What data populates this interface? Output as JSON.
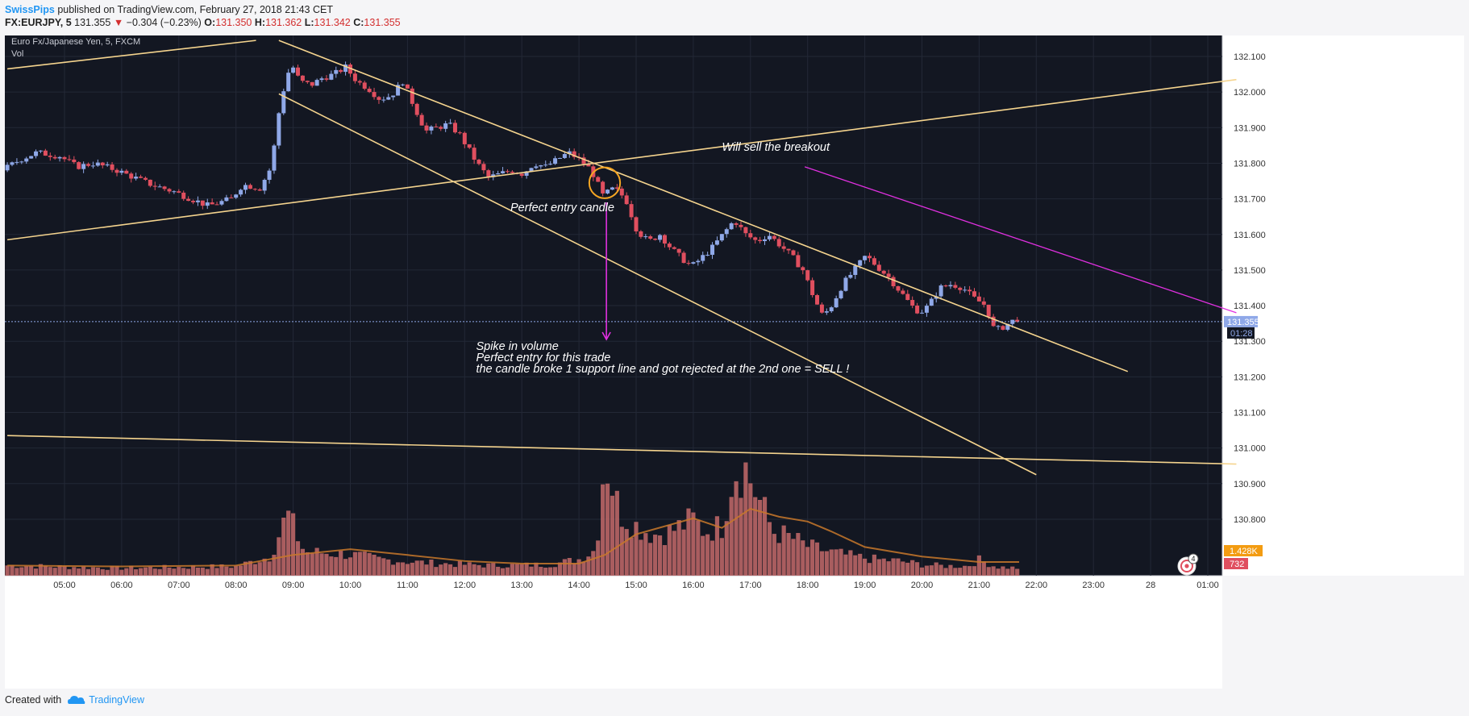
{
  "header": {
    "author": "SwissPips",
    "published": "published on TradingView.com, February 27, 2018 21:43 CET",
    "symbol": "FX:EURJPY, 5",
    "last": "131.355",
    "change": "−0.304 (−0.23%)",
    "o_label": "O:",
    "o_value": "131.350",
    "h_label": "H:",
    "h_value": "131.362",
    "l_label": "L:",
    "l_value": "131.342",
    "c_label": "C:",
    "c_value": "131.355"
  },
  "footer": {
    "created_with": "Created with",
    "brand": "TradingView"
  },
  "colors": {
    "background": "#131722",
    "up": "#8fa8e8",
    "down": "#e04f5f",
    "trendline": "#f5d48e",
    "magenta": "#e030e0",
    "circle": "#f5a623",
    "volume": "#c46a6a",
    "volume_ma": "#c8782a"
  },
  "chart_data": {
    "type": "candlestick",
    "title": "Euro Fx/Japanese Yen, 5, FXCM",
    "volume_label": "Vol",
    "ylim": [
      131.355,
      132.155
    ],
    "price_ticks": [
      "132.100",
      "132.000",
      "131.900",
      "131.800",
      "131.700",
      "131.600",
      "131.500",
      "131.400",
      "131.300",
      "131.200",
      "131.100",
      "131.000",
      "130.900",
      "130.800"
    ],
    "price_tick_values": [
      132.1,
      132.0,
      131.9,
      131.8,
      131.7,
      131.6,
      131.5,
      131.4,
      131.3,
      131.2,
      131.1,
      131.0,
      130.9,
      130.8
    ],
    "time_ticks": [
      "05:00",
      "06:00",
      "07:00",
      "08:00",
      "09:00",
      "10:00",
      "11:00",
      "12:00",
      "13:00",
      "14:00",
      "15:00",
      "16:00",
      "17:00",
      "18:00",
      "19:00",
      "20:00",
      "21:00",
      "22:00",
      "23:00",
      "28",
      "01:00"
    ],
    "time_tick_hours": [
      5,
      6,
      7,
      8,
      9,
      10,
      11,
      12,
      13,
      14,
      15,
      16,
      17,
      18,
      19,
      20,
      21,
      22,
      23,
      24,
      25
    ],
    "last_price_label": "131.355",
    "countdown_label": "01:28",
    "volume_ma_label": "1.428K",
    "volume_label_value": "732",
    "volume_ylim": [
      0,
      4300
    ],
    "price_path": [
      [
        4.0,
        131.78
      ],
      [
        4.3,
        131.81
      ],
      [
        4.6,
        131.83
      ],
      [
        5.0,
        131.82
      ],
      [
        5.3,
        131.79
      ],
      [
        5.6,
        131.8
      ],
      [
        6.0,
        131.78
      ],
      [
        6.3,
        131.76
      ],
      [
        6.6,
        131.74
      ],
      [
        7.0,
        131.72
      ],
      [
        7.3,
        131.7
      ],
      [
        7.6,
        131.68
      ],
      [
        8.0,
        131.7
      ],
      [
        8.2,
        131.74
      ],
      [
        8.5,
        131.73
      ],
      [
        8.7,
        131.79
      ],
      [
        8.85,
        131.96
      ],
      [
        8.95,
        132.03
      ],
      [
        9.05,
        132.08
      ],
      [
        9.2,
        132.03
      ],
      [
        9.4,
        132.02
      ],
      [
        9.6,
        132.04
      ],
      [
        9.8,
        132.05
      ],
      [
        10.0,
        132.07
      ],
      [
        10.2,
        132.03
      ],
      [
        10.4,
        132.01
      ],
      [
        10.6,
        131.98
      ],
      [
        10.8,
        131.99
      ],
      [
        11.0,
        132.03
      ],
      [
        11.2,
        131.96
      ],
      [
        11.4,
        131.89
      ],
      [
        11.6,
        131.9
      ],
      [
        11.8,
        131.91
      ],
      [
        12.0,
        131.88
      ],
      [
        12.15,
        131.84
      ],
      [
        12.3,
        131.8
      ],
      [
        12.5,
        131.76
      ],
      [
        12.7,
        131.77
      ],
      [
        12.9,
        131.78
      ],
      [
        13.1,
        131.77
      ],
      [
        13.3,
        131.8
      ],
      [
        13.5,
        131.79
      ],
      [
        13.7,
        131.81
      ],
      [
        13.9,
        131.83
      ],
      [
        14.1,
        131.81
      ],
      [
        14.3,
        131.78
      ],
      [
        14.5,
        131.71
      ],
      [
        14.7,
        131.73
      ],
      [
        14.9,
        131.7
      ],
      [
        15.1,
        131.61
      ],
      [
        15.3,
        131.58
      ],
      [
        15.5,
        131.6
      ],
      [
        15.7,
        131.56
      ],
      [
        15.9,
        131.53
      ],
      [
        16.05,
        131.51
      ],
      [
        16.2,
        131.53
      ],
      [
        16.4,
        131.56
      ],
      [
        16.6,
        131.6
      ],
      [
        16.8,
        131.64
      ],
      [
        17.0,
        131.6
      ],
      [
        17.2,
        131.58
      ],
      [
        17.4,
        131.6
      ],
      [
        17.6,
        131.57
      ],
      [
        17.8,
        131.54
      ],
      [
        18.0,
        131.5
      ],
      [
        18.2,
        131.42
      ],
      [
        18.35,
        131.37
      ],
      [
        18.5,
        131.4
      ],
      [
        18.7,
        131.46
      ],
      [
        18.9,
        131.5
      ],
      [
        19.1,
        131.54
      ],
      [
        19.3,
        131.51
      ],
      [
        19.5,
        131.48
      ],
      [
        19.7,
        131.44
      ],
      [
        19.9,
        131.4
      ],
      [
        20.05,
        131.38
      ],
      [
        20.2,
        131.4
      ],
      [
        20.4,
        131.45
      ],
      [
        20.6,
        131.46
      ],
      [
        20.8,
        131.45
      ],
      [
        21.0,
        131.42
      ],
      [
        21.2,
        131.4
      ],
      [
        21.35,
        131.33
      ],
      [
        21.5,
        131.34
      ],
      [
        21.7,
        131.36
      ]
    ],
    "volume_path": [
      [
        4.0,
        350
      ],
      [
        5.0,
        300
      ],
      [
        6.0,
        260
      ],
      [
        7.0,
        290
      ],
      [
        8.0,
        320
      ],
      [
        8.6,
        650
      ],
      [
        8.9,
        2100
      ],
      [
        9.2,
        800
      ],
      [
        9.5,
        780
      ],
      [
        10.0,
        720
      ],
      [
        10.5,
        560
      ],
      [
        11.0,
        480
      ],
      [
        11.5,
        420
      ],
      [
        12.0,
        380
      ],
      [
        12.5,
        350
      ],
      [
        13.0,
        360
      ],
      [
        13.5,
        380
      ],
      [
        14.0,
        560
      ],
      [
        14.3,
        900
      ],
      [
        14.45,
        4100
      ],
      [
        14.7,
        2200
      ],
      [
        15.0,
        1700
      ],
      [
        15.3,
        1400
      ],
      [
        15.6,
        1500
      ],
      [
        16.0,
        1900
      ],
      [
        16.2,
        1500
      ],
      [
        16.5,
        1700
      ],
      [
        16.7,
        3600
      ],
      [
        16.9,
        3700
      ],
      [
        17.1,
        2800
      ],
      [
        17.4,
        1500
      ],
      [
        17.7,
        1300
      ],
      [
        18.0,
        1000
      ],
      [
        18.4,
        800
      ],
      [
        18.8,
        650
      ],
      [
        19.2,
        550
      ],
      [
        19.6,
        500
      ],
      [
        20.0,
        380
      ],
      [
        20.4,
        330
      ],
      [
        20.8,
        330
      ],
      [
        21.0,
        540
      ],
      [
        21.3,
        300
      ],
      [
        21.7,
        260
      ]
    ],
    "volume_ma_path": [
      [
        4.0,
        320
      ],
      [
        6.0,
        290
      ],
      [
        8.0,
        320
      ],
      [
        9.0,
        650
      ],
      [
        10.0,
        830
      ],
      [
        11.0,
        650
      ],
      [
        12.0,
        460
      ],
      [
        13.0,
        380
      ],
      [
        14.0,
        380
      ],
      [
        14.45,
        650
      ],
      [
        15.0,
        1300
      ],
      [
        16.0,
        1800
      ],
      [
        16.5,
        1500
      ],
      [
        17.0,
        2100
      ],
      [
        17.5,
        1850
      ],
      [
        18.0,
        1700
      ],
      [
        18.4,
        1400
      ],
      [
        19.0,
        900
      ],
      [
        20.0,
        600
      ],
      [
        21.0,
        430
      ],
      [
        21.7,
        430
      ]
    ],
    "trendlines": [
      {
        "points": [
          [
            4.0,
            132.065
          ],
          [
            8.35,
            132.145
          ]
        ]
      },
      {
        "points": [
          [
            8.75,
            132.145
          ],
          [
            23.6,
            131.215
          ]
        ]
      },
      {
        "points": [
          [
            8.75,
            131.995
          ],
          [
            22.0,
            130.925
          ]
        ]
      },
      {
        "points": [
          [
            4.0,
            131.585
          ],
          [
            25.5,
            132.035
          ]
        ]
      },
      {
        "points": [
          [
            4.0,
            131.035
          ],
          [
            25.5,
            130.955
          ]
        ]
      }
    ],
    "magenta_line": {
      "points": [
        [
          17.95,
          131.79
        ],
        [
          25.5,
          131.38
        ]
      ]
    },
    "arrow": {
      "points": [
        [
          14.48,
          131.69
        ],
        [
          14.48,
          131.305
        ]
      ]
    },
    "circle": {
      "center": [
        14.45,
        131.745
      ],
      "radius_h": 0.27
    },
    "annotations": [
      {
        "text": "Will sell the breakout",
        "x": 16.5,
        "y": 131.835
      },
      {
        "text": "Perfect entry candle",
        "x": 12.8,
        "y": 131.665
      },
      {
        "lines": [
          "Spike in volume",
          "Perfect entry for this trade",
          "the candle broke 1 support line and got rejected at the 2nd one = SELL !"
        ],
        "x": 12.2,
        "y": 131.275
      }
    ],
    "alert_badge": "4"
  }
}
